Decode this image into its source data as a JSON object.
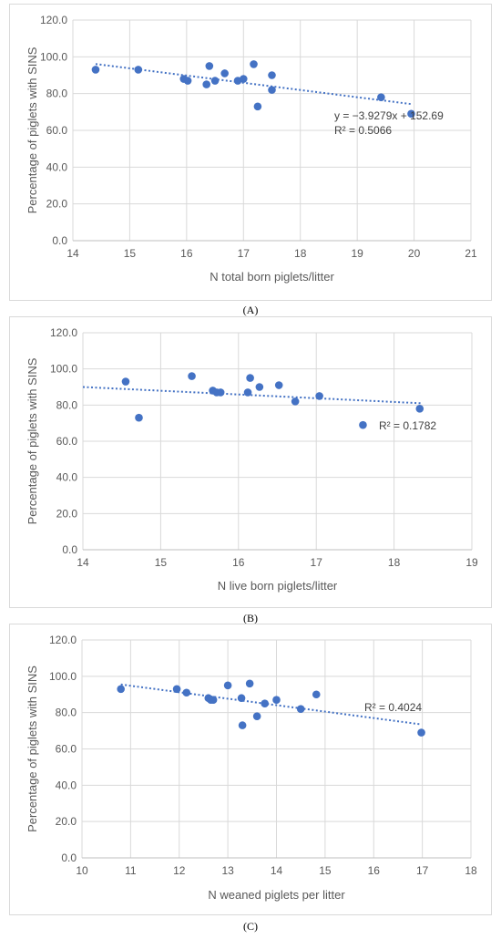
{
  "chart_data": [
    {
      "panel_label": "(A)",
      "type": "scatter",
      "xlabel": "N total born piglets/litter",
      "ylabel": "Percentage of piglets with SINS",
      "xlim": [
        14,
        21
      ],
      "ylim": [
        0,
        120
      ],
      "xticks": [
        "14",
        "15",
        "16",
        "17",
        "18",
        "19",
        "20",
        "21"
      ],
      "yticks": [
        "0.0",
        "20.0",
        "40.0",
        "60.0",
        "80.0",
        "100.0",
        "120.0"
      ],
      "grid": "on",
      "points": [
        {
          "x": 14.4,
          "y": 93
        },
        {
          "x": 15.15,
          "y": 93
        },
        {
          "x": 15.95,
          "y": 88
        },
        {
          "x": 16.02,
          "y": 87
        },
        {
          "x": 16.35,
          "y": 85
        },
        {
          "x": 16.4,
          "y": 95
        },
        {
          "x": 16.5,
          "y": 87
        },
        {
          "x": 16.67,
          "y": 91
        },
        {
          "x": 16.9,
          "y": 87
        },
        {
          "x": 17.0,
          "y": 88
        },
        {
          "x": 17.18,
          "y": 96
        },
        {
          "x": 17.25,
          "y": 73
        },
        {
          "x": 17.5,
          "y": 90
        },
        {
          "x": 17.5,
          "y": 82
        },
        {
          "x": 19.42,
          "y": 78
        },
        {
          "x": 19.95,
          "y": 69
        }
      ],
      "trendline": {
        "x": [
          14.4,
          19.95
        ],
        "y": [
          96.1,
          74.3
        ]
      },
      "annotations": [
        "y = −3.9279x + 152.69",
        "R² = 0.5066"
      ]
    },
    {
      "panel_label": "(B)",
      "type": "scatter",
      "xlabel": "N live born piglets/litter",
      "ylabel": "Percentage of piglets with SINS",
      "xlim": [
        14,
        19
      ],
      "ylim": [
        0,
        120
      ],
      "xticks": [
        "14",
        "15",
        "16",
        "17",
        "18",
        "19"
      ],
      "yticks": [
        "0.0",
        "20.0",
        "40.0",
        "60.0",
        "80.0",
        "100.0",
        "120.0"
      ],
      "grid": "on",
      "points": [
        {
          "x": 14.55,
          "y": 93
        },
        {
          "x": 14.72,
          "y": 73
        },
        {
          "x": 15.4,
          "y": 96
        },
        {
          "x": 15.67,
          "y": 88
        },
        {
          "x": 15.72,
          "y": 87
        },
        {
          "x": 15.77,
          "y": 87
        },
        {
          "x": 16.12,
          "y": 87
        },
        {
          "x": 16.15,
          "y": 95
        },
        {
          "x": 16.27,
          "y": 90
        },
        {
          "x": 16.52,
          "y": 91
        },
        {
          "x": 16.73,
          "y": 82
        },
        {
          "x": 17.04,
          "y": 85
        },
        {
          "x": 17.6,
          "y": 69
        },
        {
          "x": 18.33,
          "y": 78
        }
      ],
      "trendline": {
        "x": [
          14,
          18.35
        ],
        "y": [
          90,
          81
        ]
      },
      "annotations": [
        "R² = 0.1782"
      ]
    },
    {
      "panel_label": "(C)",
      "type": "scatter",
      "xlabel": "N weaned piglets per litter",
      "ylabel": "Percentage of piglets with SINS",
      "xlim": [
        10,
        18
      ],
      "ylim": [
        0,
        120
      ],
      "xticks": [
        "10",
        "11",
        "12",
        "13",
        "14",
        "15",
        "16",
        "17",
        "18"
      ],
      "yticks": [
        "0.0",
        "20.0",
        "40.0",
        "60.0",
        "80.0",
        "100.0",
        "120.0"
      ],
      "grid": "on",
      "points": [
        {
          "x": 10.8,
          "y": 93
        },
        {
          "x": 11.95,
          "y": 93
        },
        {
          "x": 12.15,
          "y": 91
        },
        {
          "x": 12.6,
          "y": 88
        },
        {
          "x": 12.65,
          "y": 87
        },
        {
          "x": 12.7,
          "y": 87
        },
        {
          "x": 13.0,
          "y": 95
        },
        {
          "x": 13.28,
          "y": 88
        },
        {
          "x": 13.3,
          "y": 73
        },
        {
          "x": 13.45,
          "y": 96
        },
        {
          "x": 13.6,
          "y": 78
        },
        {
          "x": 13.76,
          "y": 85
        },
        {
          "x": 14.0,
          "y": 87
        },
        {
          "x": 14.5,
          "y": 82
        },
        {
          "x": 14.82,
          "y": 90
        },
        {
          "x": 16.98,
          "y": 69
        }
      ],
      "trendline": {
        "x": [
          10.8,
          16.98
        ],
        "y": [
          95.5,
          73.5
        ]
      },
      "annotations": [
        "R² = 0.4024"
      ]
    }
  ]
}
